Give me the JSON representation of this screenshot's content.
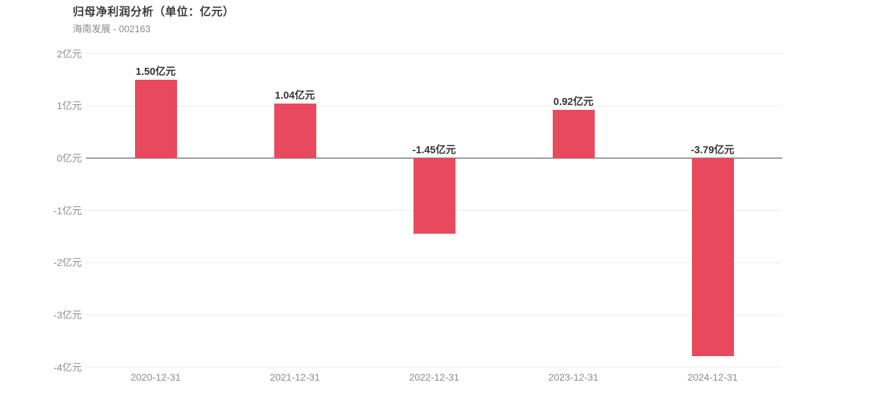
{
  "header": {
    "title": "归母净利润分析（单位：亿元）",
    "subtitle": "海南发展 - 002163"
  },
  "chart_data": {
    "type": "bar",
    "title": "归母净利润分析（单位：亿元）",
    "subtitle": "海南发展 - 002163",
    "categories": [
      "2020-12-31",
      "2021-12-31",
      "2022-12-31",
      "2023-12-31",
      "2024-12-31"
    ],
    "values": [
      1.5,
      1.04,
      -1.45,
      0.92,
      -3.79
    ],
    "value_labels": [
      "1.50亿元",
      "1.04亿元",
      "-1.45亿元",
      "0.92亿元",
      "-3.79亿元"
    ],
    "xlabel": "",
    "ylabel": "",
    "ylim": [
      -4,
      2
    ],
    "y_ticks": [
      2,
      1,
      0,
      -1,
      -2,
      -3,
      -4
    ],
    "y_tick_labels": [
      "2亿元",
      "1亿元",
      "0亿元",
      "-1亿元",
      "-2亿元",
      "-3亿元",
      "-4亿元"
    ],
    "grid": true,
    "legend_position": "none",
    "bar_color": "#e8495c",
    "value_label_color": "#333333",
    "axis_label_color": "#8b8b8b",
    "grid_color": "#ebebeb",
    "zero_line_color": "#999999"
  }
}
